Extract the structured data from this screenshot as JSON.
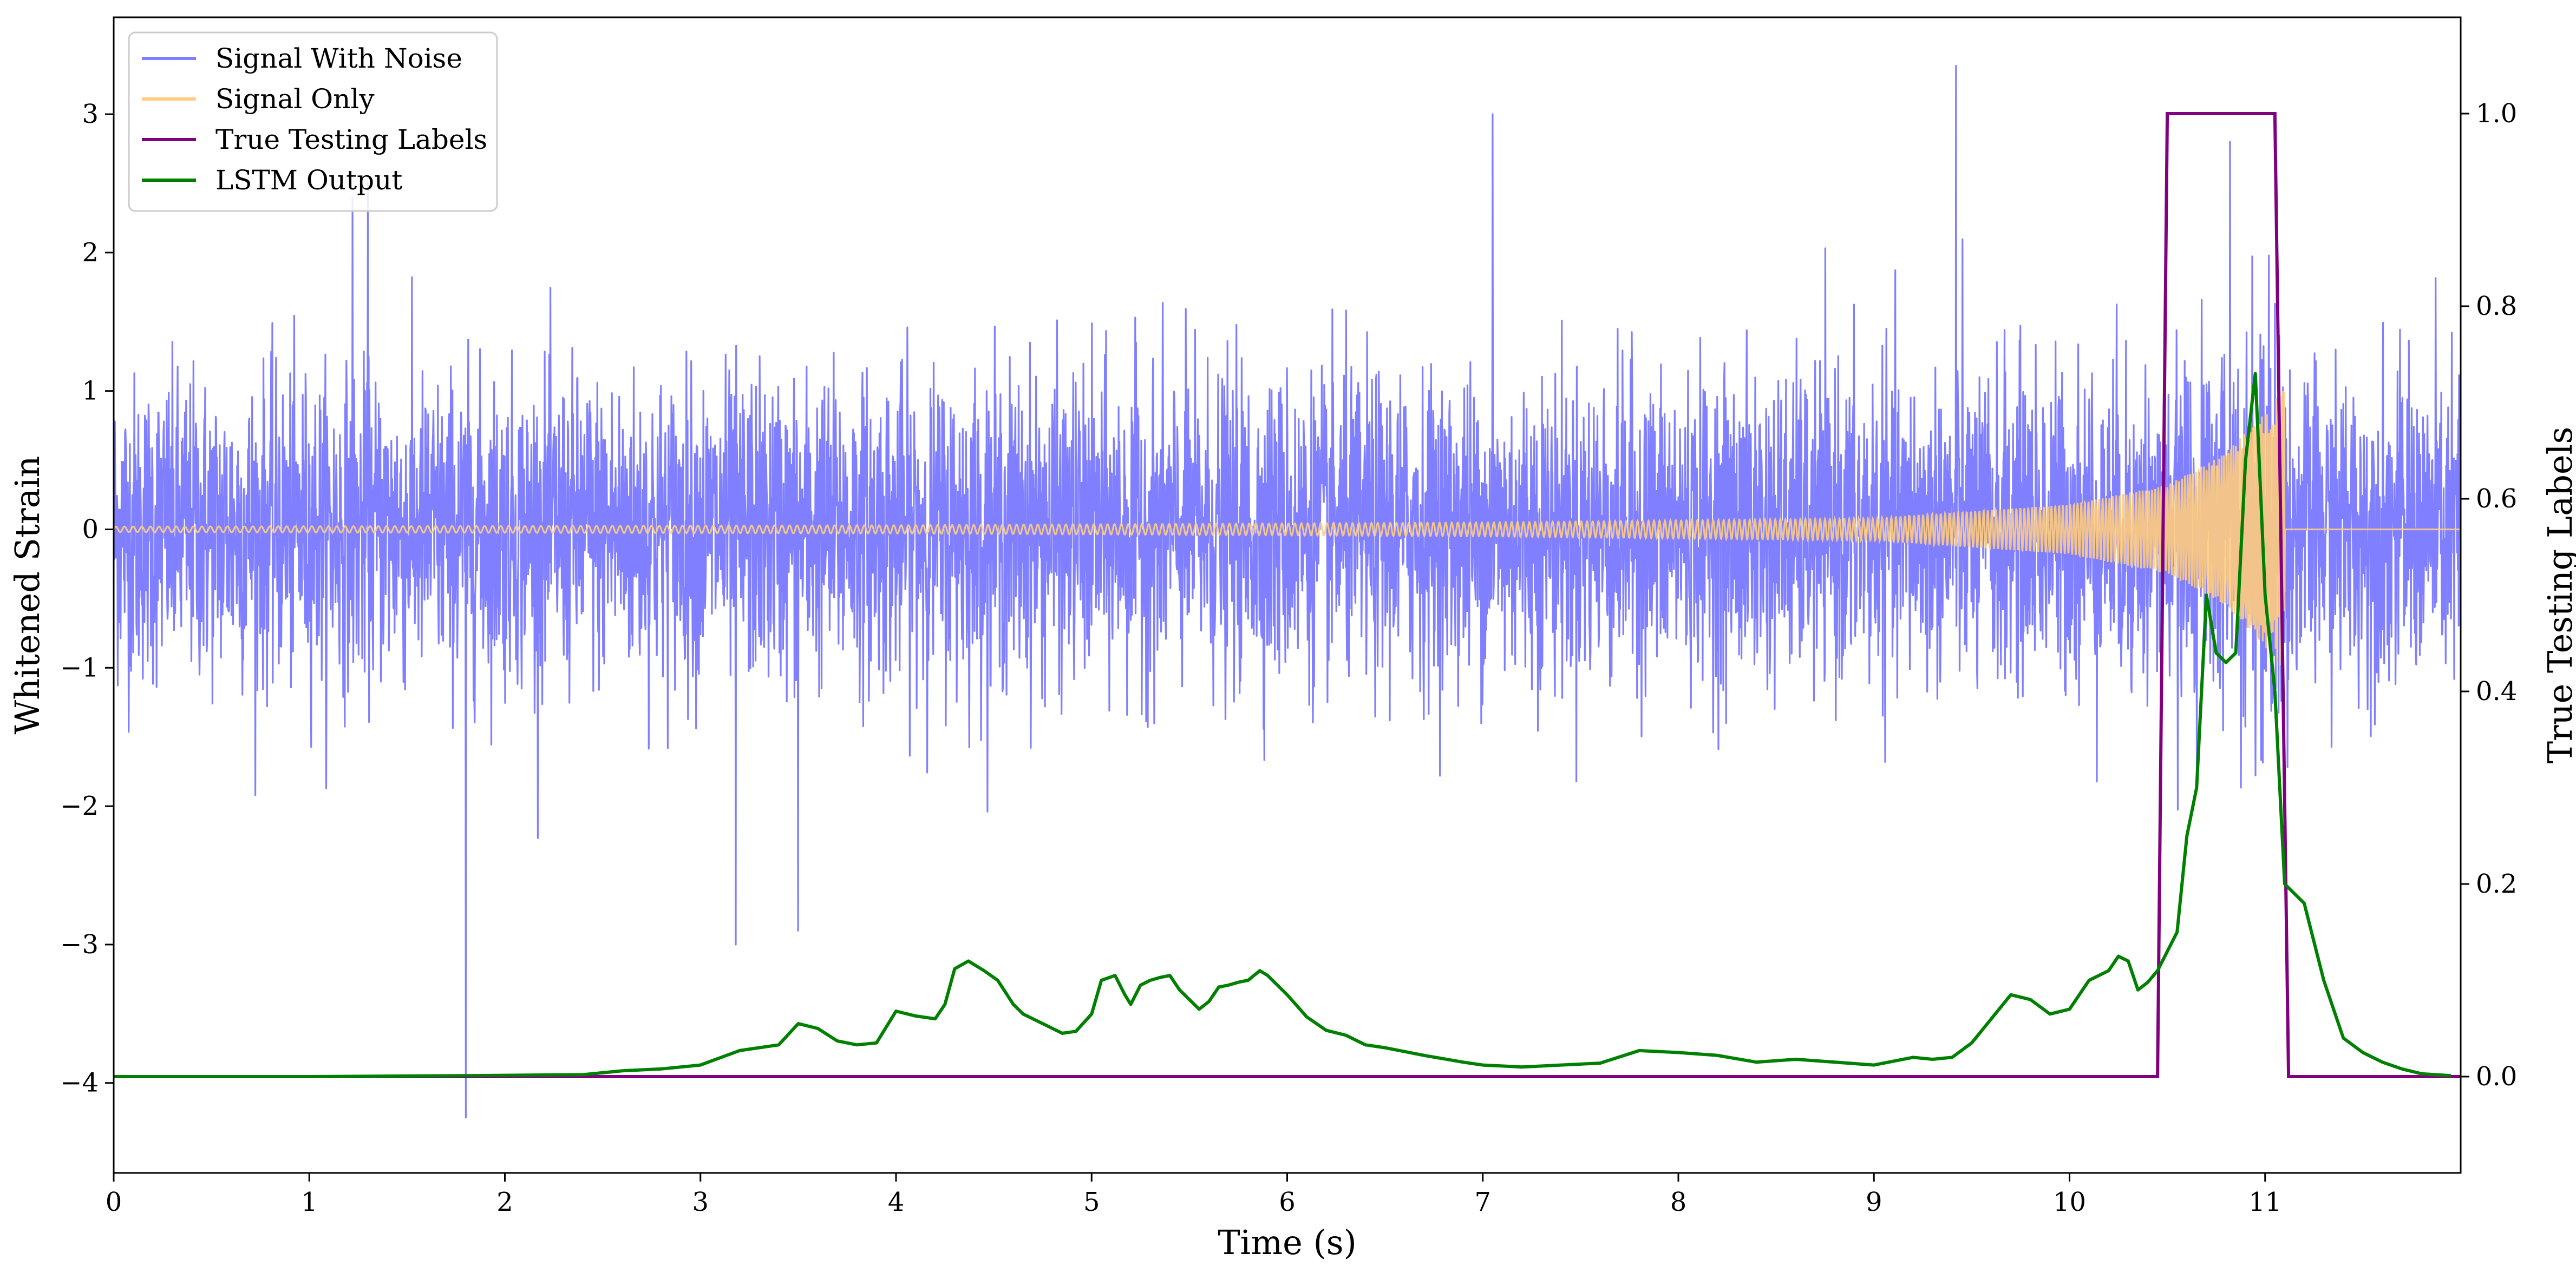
{
  "chart_data": {
    "type": "line",
    "title": "",
    "xlabel": "Time (s)",
    "ylabel": "Whitened Strain",
    "y2label": "True Testing Labels",
    "xlim": [
      0,
      12
    ],
    "ylim": [
      -4.65,
      3.7
    ],
    "y2lim": [
      -0.1,
      1.1
    ],
    "xticks": [
      0,
      1,
      2,
      3,
      4,
      5,
      6,
      7,
      8,
      9,
      10,
      11
    ],
    "yticks": [
      -4,
      -3,
      -2,
      -1,
      0,
      1,
      2,
      3
    ],
    "y2ticks": [
      0.0,
      0.2,
      0.4,
      0.6,
      0.8,
      1.0
    ],
    "legend_position": "top-left",
    "grid": false,
    "series": [
      {
        "name": "Signal With Noise",
        "axis": "left",
        "color": "#7f7fff",
        "description_type": "gaussian-noise",
        "noise_std": 0.55,
        "x_range": [
          0,
          12
        ],
        "notable_peaks": [
          [
            1.3,
            2.5
          ],
          [
            9.42,
            3.35
          ],
          [
            7.05,
            3.0
          ],
          [
            1.8,
            -4.25
          ],
          [
            3.18,
            -3.0
          ],
          [
            3.5,
            -2.9
          ],
          [
            10.82,
            2.8
          ],
          [
            1.22,
            2.4
          ]
        ]
      },
      {
        "name": "Signal Only",
        "axis": "left",
        "color": "#ffcc80",
        "description_type": "chirp",
        "x_range": [
          0,
          11.1
        ],
        "amplitude_envelope": [
          [
            0,
            0.02
          ],
          [
            4,
            0.03
          ],
          [
            7,
            0.05
          ],
          [
            9,
            0.08
          ],
          [
            10,
            0.18
          ],
          [
            10.5,
            0.32
          ],
          [
            10.8,
            0.55
          ],
          [
            11.0,
            0.85
          ],
          [
            11.08,
            1.0
          ]
        ]
      },
      {
        "name": "True Testing Labels",
        "axis": "right",
        "color": "#800080",
        "x": [
          0,
          10.45,
          10.5,
          11.05,
          11.12,
          12
        ],
        "values": [
          0,
          0,
          1,
          1,
          0,
          0
        ]
      },
      {
        "name": "LSTM Output",
        "axis": "right",
        "color": "#008000",
        "x": [
          0,
          1.0,
          1.8,
          2.4,
          2.6,
          2.8,
          3.0,
          3.2,
          3.3,
          3.4,
          3.5,
          3.6,
          3.7,
          3.8,
          3.9,
          4.0,
          4.1,
          4.2,
          4.25,
          4.3,
          4.37,
          4.45,
          4.52,
          4.6,
          4.65,
          4.75,
          4.85,
          4.92,
          5.0,
          5.05,
          5.12,
          5.17,
          5.2,
          5.25,
          5.3,
          5.35,
          5.4,
          5.45,
          5.5,
          5.55,
          5.6,
          5.65,
          5.7,
          5.75,
          5.8,
          5.86,
          5.9,
          6.0,
          6.1,
          6.2,
          6.3,
          6.4,
          6.5,
          6.7,
          6.9,
          7.0,
          7.2,
          7.4,
          7.6,
          7.8,
          8.0,
          8.2,
          8.4,
          8.6,
          8.8,
          9.0,
          9.2,
          9.3,
          9.4,
          9.5,
          9.6,
          9.7,
          9.8,
          9.9,
          10.0,
          10.1,
          10.2,
          10.25,
          10.3,
          10.35,
          10.4,
          10.45,
          10.5,
          10.55,
          10.6,
          10.65,
          10.7,
          10.75,
          10.8,
          10.85,
          10.9,
          10.95,
          11.0,
          11.05,
          11.1,
          11.2,
          11.3,
          11.4,
          11.5,
          11.6,
          11.7,
          11.8,
          11.95
        ],
        "values": [
          0,
          0,
          0.001,
          0.002,
          0.006,
          0.008,
          0.012,
          0.027,
          0.03,
          0.033,
          0.055,
          0.05,
          0.037,
          0.033,
          0.035,
          0.068,
          0.063,
          0.06,
          0.075,
          0.112,
          0.12,
          0.11,
          0.1,
          0.075,
          0.065,
          0.055,
          0.045,
          0.047,
          0.065,
          0.1,
          0.105,
          0.085,
          0.075,
          0.095,
          0.1,
          0.103,
          0.105,
          0.09,
          0.08,
          0.07,
          0.078,
          0.093,
          0.095,
          0.098,
          0.1,
          0.11,
          0.105,
          0.085,
          0.062,
          0.048,
          0.043,
          0.033,
          0.03,
          0.022,
          0.015,
          0.012,
          0.01,
          0.012,
          0.014,
          0.027,
          0.025,
          0.022,
          0.015,
          0.018,
          0.015,
          0.012,
          0.02,
          0.018,
          0.02,
          0.035,
          0.06,
          0.085,
          0.08,
          0.065,
          0.07,
          0.1,
          0.11,
          0.125,
          0.12,
          0.09,
          0.098,
          0.11,
          0.13,
          0.15,
          0.25,
          0.3,
          0.5,
          0.44,
          0.43,
          0.44,
          0.64,
          0.73,
          0.5,
          0.4,
          0.2,
          0.18,
          0.1,
          0.04,
          0.025,
          0.015,
          0.008,
          0.003,
          0.001
        ]
      }
    ]
  }
}
